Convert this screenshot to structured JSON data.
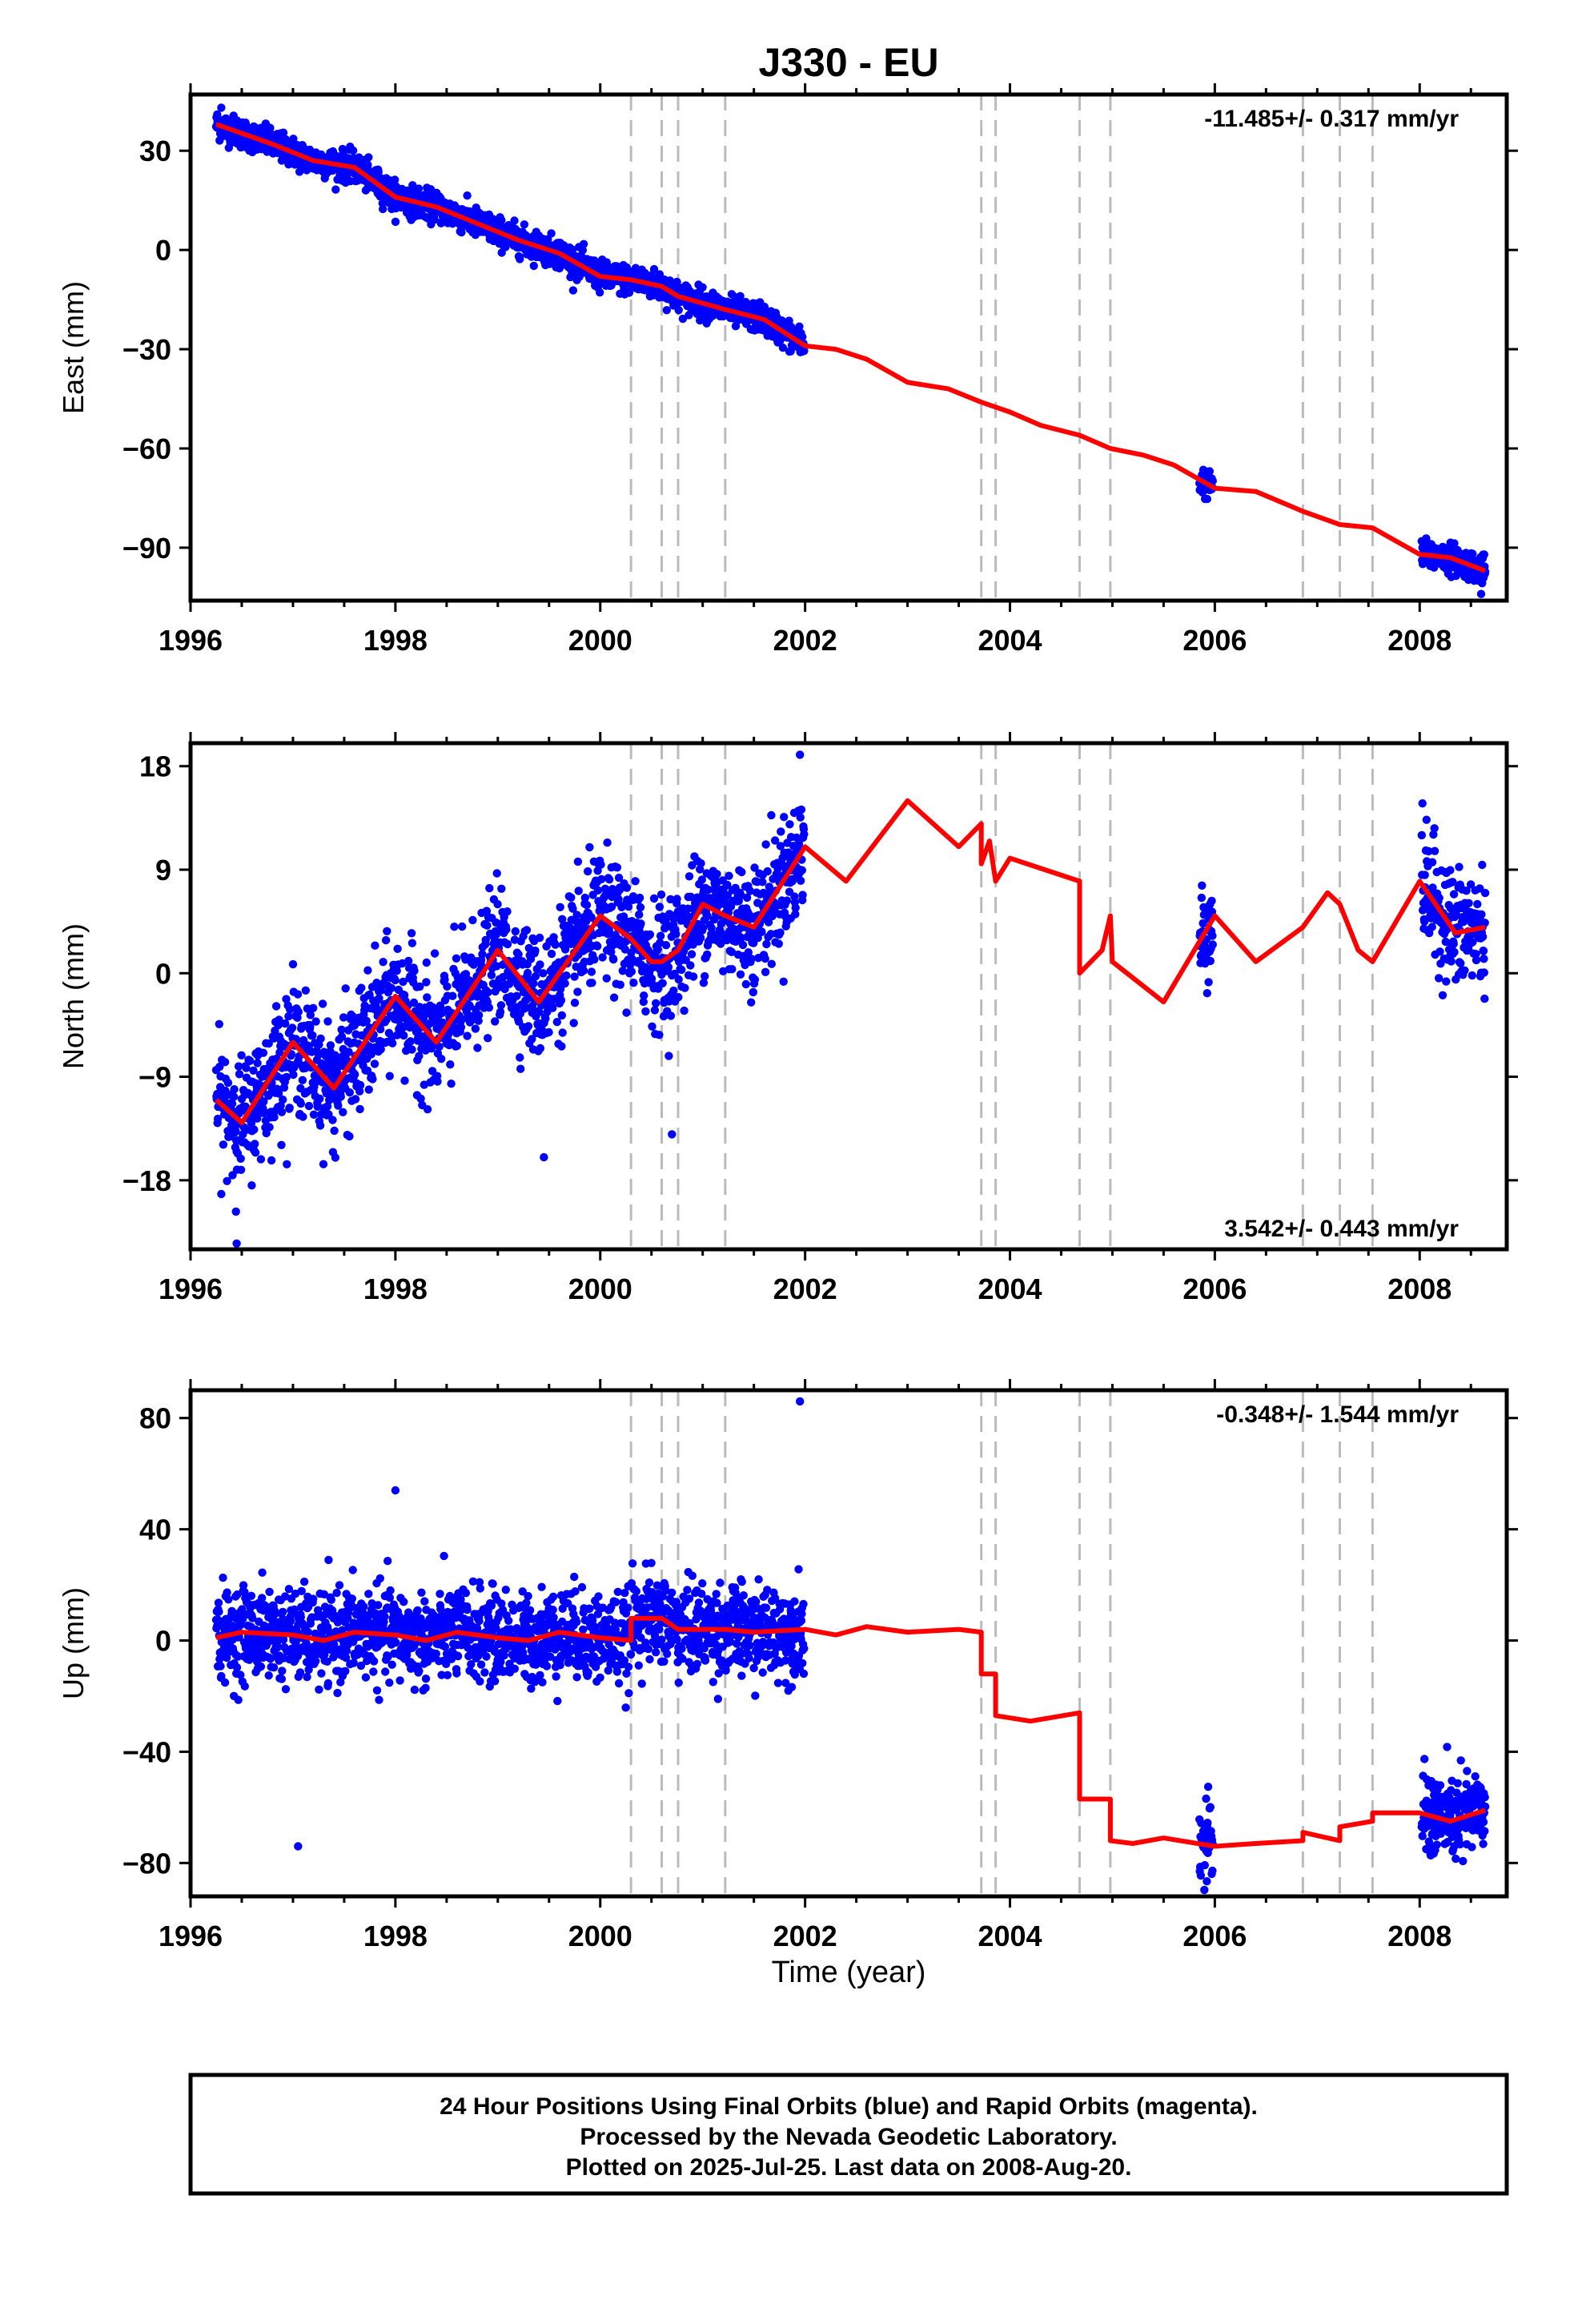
{
  "colors": {
    "points": "#0000ff",
    "model": "#ff0000",
    "offset_lines": "#bbbbbb",
    "frame": "#000000"
  },
  "chart_data": {
    "type": "scatter",
    "title": "J330 - EU",
    "xlabel": "Time (year)",
    "xlim": [
      1996.0,
      2008.85
    ],
    "xticks": [
      1996,
      1998,
      2000,
      2002,
      2004,
      2006,
      2008
    ],
    "offset_epochs": [
      2000.3,
      2000.6,
      2000.76,
      2001.22,
      2003.72,
      2003.86,
      2004.68,
      2004.98,
      2006.86,
      2007.22,
      2007.54
    ],
    "data_segments": [
      [
        1996.25,
        2001.99
      ],
      [
        2005.85,
        2005.98
      ],
      [
        2008.02,
        2008.64
      ]
    ],
    "panels": [
      {
        "key": "east",
        "ylabel": "East (mm)",
        "ylim": [
          -106,
          47
        ],
        "yticks": [
          30,
          0,
          -30,
          -60,
          -90
        ],
        "rate_text": "-11.485+/- 0.317 mm/yr",
        "rate_position": "top-right",
        "scatter_sd": 2.2,
        "extremes": [
          [
            1996.3,
            43
          ],
          [
            2008.6,
            -104
          ]
        ],
        "model": [
          [
            1996.25,
            38
          ],
          [
            1996.8,
            32
          ],
          [
            1997.2,
            27
          ],
          [
            1997.6,
            25
          ],
          [
            1998.0,
            16
          ],
          [
            1998.4,
            13
          ],
          [
            1998.8,
            8
          ],
          [
            1999.2,
            3
          ],
          [
            1999.6,
            -1
          ],
          [
            2000.0,
            -8
          ],
          [
            2000.3,
            -9
          ],
          [
            2000.6,
            -11
          ],
          [
            2000.76,
            -14
          ],
          [
            2001.22,
            -18
          ],
          [
            2001.6,
            -21
          ],
          [
            2002.0,
            -29
          ],
          [
            2002.3,
            -30
          ],
          [
            2002.6,
            -33
          ],
          [
            2003.0,
            -40
          ],
          [
            2003.4,
            -42
          ],
          [
            2003.72,
            -46
          ],
          [
            2004.0,
            -49
          ],
          [
            2004.3,
            -53
          ],
          [
            2004.68,
            -56
          ],
          [
            2004.98,
            -60
          ],
          [
            2005.3,
            -62
          ],
          [
            2005.6,
            -65
          ],
          [
            2006.0,
            -72
          ],
          [
            2006.4,
            -73
          ],
          [
            2006.86,
            -79
          ],
          [
            2007.22,
            -83
          ],
          [
            2007.54,
            -84
          ],
          [
            2008.0,
            -92
          ],
          [
            2008.3,
            -93
          ],
          [
            2008.64,
            -97
          ]
        ]
      },
      {
        "key": "north",
        "ylabel": "North (mm)",
        "ylim": [
          -24,
          20
        ],
        "yticks": [
          18,
          9,
          0,
          -9,
          -18
        ],
        "rate_text": "3.542+/- 0.443 mm/yr",
        "rate_position": "bottom-right",
        "scatter_sd": 2.6,
        "extremes": [
          [
            1996.45,
            -23.5
          ],
          [
            2001.95,
            19
          ],
          [
            2000.7,
            -14
          ],
          [
            1999.45,
            -16
          ]
        ],
        "model": [
          [
            1996.25,
            -11
          ],
          [
            1996.5,
            -13
          ],
          [
            1997.0,
            -6
          ],
          [
            1997.4,
            -10
          ],
          [
            1998.0,
            -2
          ],
          [
            1998.4,
            -6
          ],
          [
            1999.0,
            2
          ],
          [
            1999.4,
            -2.5
          ],
          [
            2000.0,
            5
          ],
          [
            2000.3,
            3
          ],
          [
            2000.5,
            1
          ],
          [
            2000.6,
            1
          ],
          [
            2000.76,
            2
          ],
          [
            2001.0,
            6
          ],
          [
            2001.22,
            5
          ],
          [
            2001.5,
            4
          ],
          [
            2002.0,
            11
          ],
          [
            2002.4,
            8
          ],
          [
            2003.0,
            15
          ],
          [
            2003.5,
            11
          ],
          [
            2003.72,
            13
          ],
          [
            2003.72,
            9.5
          ],
          [
            2003.8,
            11.5
          ],
          [
            2003.86,
            8
          ],
          [
            2004.0,
            10
          ],
          [
            2004.68,
            8
          ],
          [
            2004.68,
            0
          ],
          [
            2004.9,
            2
          ],
          [
            2004.98,
            5
          ],
          [
            2005.0,
            1
          ],
          [
            2005.5,
            -2.5
          ],
          [
            2006.0,
            5
          ],
          [
            2006.4,
            1
          ],
          [
            2006.86,
            4
          ],
          [
            2007.1,
            7
          ],
          [
            2007.22,
            6
          ],
          [
            2007.4,
            2
          ],
          [
            2007.54,
            1
          ],
          [
            2008.0,
            8
          ],
          [
            2008.35,
            3.5
          ],
          [
            2008.64,
            4
          ]
        ]
      },
      {
        "key": "up",
        "ylabel": "Up (mm)",
        "ylim": [
          -92,
          90
        ],
        "yticks": [
          80,
          40,
          0,
          -40,
          -80
        ],
        "rate_text": "-0.348+/- 1.544 mm/yr",
        "rate_position": "top-right",
        "scatter_sd": 8,
        "extremes": [
          [
            1997.05,
            -74
          ],
          [
            2001.95,
            86
          ],
          [
            1998.0,
            54
          ]
        ],
        "model": [
          [
            1996.25,
            1
          ],
          [
            1996.5,
            3
          ],
          [
            1997.0,
            2
          ],
          [
            1997.3,
            0
          ],
          [
            1997.6,
            3
          ],
          [
            1998.0,
            2
          ],
          [
            1998.3,
            0
          ],
          [
            1998.6,
            3
          ],
          [
            1999.0,
            1
          ],
          [
            1999.3,
            0
          ],
          [
            1999.6,
            3
          ],
          [
            2000.0,
            1
          ],
          [
            2000.3,
            0
          ],
          [
            2000.3,
            8
          ],
          [
            2000.6,
            8
          ],
          [
            2000.76,
            4
          ],
          [
            2001.22,
            4
          ],
          [
            2001.5,
            3
          ],
          [
            2002.0,
            4
          ],
          [
            2002.3,
            2
          ],
          [
            2002.6,
            5
          ],
          [
            2003.0,
            3
          ],
          [
            2003.5,
            4
          ],
          [
            2003.72,
            3
          ],
          [
            2003.72,
            -12
          ],
          [
            2003.86,
            -12
          ],
          [
            2003.86,
            -27
          ],
          [
            2004.2,
            -29
          ],
          [
            2004.68,
            -26
          ],
          [
            2004.68,
            -57
          ],
          [
            2004.98,
            -57
          ],
          [
            2004.98,
            -72
          ],
          [
            2005.2,
            -73
          ],
          [
            2005.5,
            -71
          ],
          [
            2006.0,
            -74
          ],
          [
            2006.4,
            -73
          ],
          [
            2006.86,
            -72
          ],
          [
            2006.86,
            -69
          ],
          [
            2007.22,
            -72
          ],
          [
            2007.22,
            -67
          ],
          [
            2007.54,
            -65
          ],
          [
            2007.54,
            -62
          ],
          [
            2008.0,
            -62
          ],
          [
            2008.3,
            -65
          ],
          [
            2008.64,
            -61
          ]
        ]
      }
    ],
    "footer": [
      "24 Hour Positions Using Final Orbits (blue) and Rapid Orbits (magenta).",
      "Processed by the Nevada Geodetic Laboratory.",
      "Plotted on 2025-Jul-25. Last data on 2008-Aug-20."
    ]
  }
}
